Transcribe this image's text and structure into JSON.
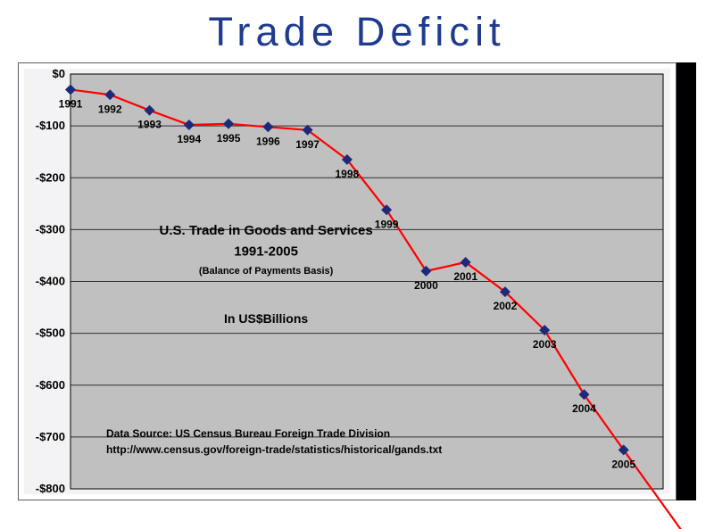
{
  "title": {
    "text": "Trade Deficit",
    "color": "#1f3b8f",
    "fontsize_pt": 34
  },
  "chart": {
    "type": "line",
    "background_color": "#c0c0c0",
    "outer_background_color": "#f3f3f5",
    "grid_color": "#303030",
    "axis_color": "#000000",
    "outer_border_color": "#5b5b6f",
    "black_panel_color": "#000000",
    "line_color": "#ff0000",
    "line_width": 2.2,
    "marker_color": "#1d2a7a",
    "marker_size": 6,
    "ylim": [
      -800,
      0
    ],
    "ytick_step": 100,
    "ytick_format_prefix": "-$",
    "ytick_format_zero": "$0",
    "xlim": [
      1991,
      2006
    ],
    "ytick_label_fontsize": 13,
    "ytick_label_fontweight": "bold",
    "ytick_label_color": "#000000",
    "point_label_fontsize": 12,
    "point_label_fontweight": "bold",
    "point_label_color": "#000000",
    "subtitle": {
      "text": "U.S. Trade in Goods and Services",
      "fontsize": 15,
      "fontweight": "bold",
      "color": "#000000"
    },
    "subsubtitle": {
      "text": "1991-2005",
      "fontsize": 15,
      "fontweight": "bold",
      "color": "#000000"
    },
    "basis": {
      "text": "(Balance of Payments Basis)",
      "fontsize": 11,
      "fontweight": "bold",
      "color": "#000000"
    },
    "units": {
      "text": "In US$Billions",
      "fontsize": 14,
      "fontweight": "bold",
      "color": "#000000"
    },
    "source_lines": [
      "Data Source:  US Census Bureau Foreign Trade Division",
      "http://www.census.gov/foreign-trade/statistics/historical/gands.txt"
    ],
    "source_fontsize": 12,
    "source_fontweight": "bold",
    "source_color": "#000000",
    "points": [
      {
        "year": 1991,
        "value": -30,
        "label": "1991"
      },
      {
        "year": 1992,
        "value": -40,
        "label": "1992"
      },
      {
        "year": 1993,
        "value": -70,
        "label": "1993"
      },
      {
        "year": 1994,
        "value": -98,
        "label": "1994"
      },
      {
        "year": 1995,
        "value": -96,
        "label": "1995"
      },
      {
        "year": 1996,
        "value": -102,
        "label": "1996"
      },
      {
        "year": 1997,
        "value": -108,
        "label": "1997"
      },
      {
        "year": 1998,
        "value": -165,
        "label": "1998"
      },
      {
        "year": 1999,
        "value": -262,
        "label": "1999"
      },
      {
        "year": 2000,
        "value": -380,
        "label": "2000"
      },
      {
        "year": 2001,
        "value": -363,
        "label": "2001"
      },
      {
        "year": 2002,
        "value": -420,
        "label": "2002"
      },
      {
        "year": 2003,
        "value": -494,
        "label": "2003"
      },
      {
        "year": 2004,
        "value": -618,
        "label": "2004"
      },
      {
        "year": 2005,
        "value": -725,
        "label": "2005"
      }
    ],
    "arrow": {
      "extends_to_year": 2006.7,
      "extends_to_value": -905,
      "head_size": 11
    }
  }
}
